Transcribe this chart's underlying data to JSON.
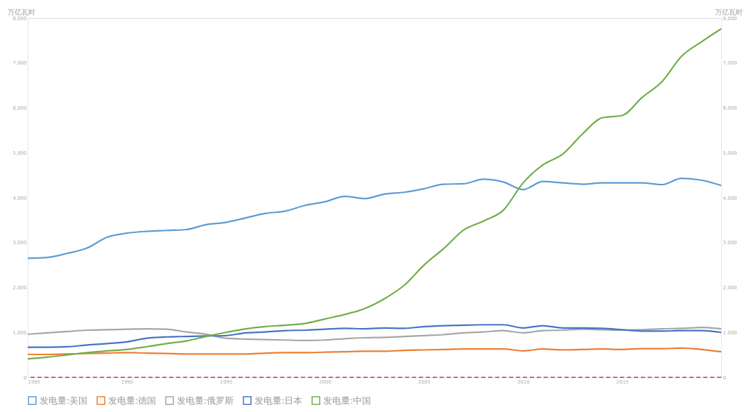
{
  "chart_data": {
    "type": "line",
    "x": [
      1985,
      1986,
      1987,
      1988,
      1989,
      1990,
      1991,
      1992,
      1993,
      1994,
      1995,
      1996,
      1997,
      1998,
      1999,
      2000,
      2001,
      2002,
      2003,
      2004,
      2005,
      2006,
      2007,
      2008,
      2009,
      2010,
      2011,
      2012,
      2013,
      2014,
      2015,
      2016,
      2017,
      2018,
      2019,
      2020
    ],
    "series": [
      {
        "name": "发电量:美国",
        "color": "#5b9bd5",
        "values": [
          2650,
          2670,
          2760,
          2880,
          3120,
          3210,
          3250,
          3270,
          3290,
          3400,
          3450,
          3550,
          3650,
          3700,
          3830,
          3910,
          4030,
          3980,
          4080,
          4120,
          4200,
          4300,
          4310,
          4410,
          4350,
          4180,
          4360,
          4330,
          4300,
          4330,
          4330,
          4330,
          4290,
          4430,
          4390,
          4270
        ]
      },
      {
        "name": "发电量:德国",
        "color": "#ed7d31",
        "values": [
          510,
          510,
          520,
          530,
          540,
          550,
          540,
          530,
          520,
          520,
          520,
          520,
          540,
          550,
          550,
          560,
          570,
          580,
          580,
          600,
          610,
          620,
          630,
          630,
          630,
          590,
          630,
          610,
          620,
          630,
          620,
          640,
          640,
          650,
          620,
          570
        ]
      },
      {
        "name": "发电量:俄罗斯",
        "color": "#a5a5a5",
        "values": [
          960,
          990,
          1020,
          1050,
          1060,
          1070,
          1080,
          1070,
          1010,
          960,
          870,
          850,
          840,
          830,
          820,
          830,
          860,
          880,
          890,
          910,
          930,
          950,
          990,
          1010,
          1040,
          990,
          1040,
          1050,
          1070,
          1060,
          1050,
          1060,
          1080,
          1090,
          1110,
          1080
        ]
      },
      {
        "name": "发电量:日本",
        "color": "#4472c4",
        "values": [
          670,
          670,
          680,
          720,
          750,
          790,
          870,
          900,
          910,
          920,
          930,
          990,
          1010,
          1040,
          1050,
          1070,
          1090,
          1080,
          1100,
          1090,
          1130,
          1150,
          1160,
          1170,
          1170,
          1100,
          1150,
          1100,
          1100,
          1090,
          1060,
          1030,
          1030,
          1040,
          1040,
          1000
        ]
      },
      {
        "name": "发电量:中国",
        "color": "#70ad47",
        "values": [
          410,
          450,
          500,
          550,
          590,
          620,
          680,
          750,
          810,
          910,
          1000,
          1080,
          1130,
          1160,
          1200,
          1300,
          1400,
          1530,
          1750,
          2050,
          2500,
          2870,
          3280,
          3480,
          3720,
          4330,
          4730,
          4970,
          5420,
          5780,
          5830,
          6230,
          6580,
          7150,
          7470,
          7760
        ]
      }
    ],
    "xlim": [
      1985,
      2020
    ],
    "xticks": [
      1985,
      1990,
      1995,
      2000,
      2005,
      2010,
      2015
    ],
    "ylim": [
      0,
      8000
    ],
    "yticks": [
      0,
      {
        "value": 1000,
        "label": "1,000"
      },
      {
        "value": 2000,
        "label": "2,000"
      },
      {
        "value": 3000,
        "label": "3,000"
      },
      {
        "value": 4000,
        "label": "4,000"
      },
      {
        "value": 5000,
        "label": "5,000"
      },
      {
        "value": 6000,
        "label": "6,000"
      },
      {
        "value": 7000,
        "label": "7,000"
      },
      {
        "value": 8000,
        "label": "8,000"
      }
    ],
    "y2lim": [
      0,
      8000
    ],
    "y2ticks": [
      0,
      {
        "value": 1000,
        "label": "1,000"
      },
      {
        "value": 2000,
        "label": "2,000"
      },
      {
        "value": 3000,
        "label": "3,000"
      },
      {
        "value": 4000,
        "label": "4,000"
      },
      {
        "value": 5000,
        "label": "5,000"
      },
      {
        "value": 6000,
        "label": "6,000"
      },
      {
        "value": 7000,
        "label": "7,000"
      },
      {
        "value": 8000,
        "label": "8,000"
      }
    ],
    "ylabel": "万亿瓦时",
    "y2label": "万亿瓦时",
    "ref_lines": [
      {
        "axis": "y",
        "value": 0,
        "color": "#e03030",
        "line_style": "dashed"
      }
    ],
    "grid": false,
    "legend": "bottom",
    "marker": "none",
    "line_style": "solid"
  }
}
